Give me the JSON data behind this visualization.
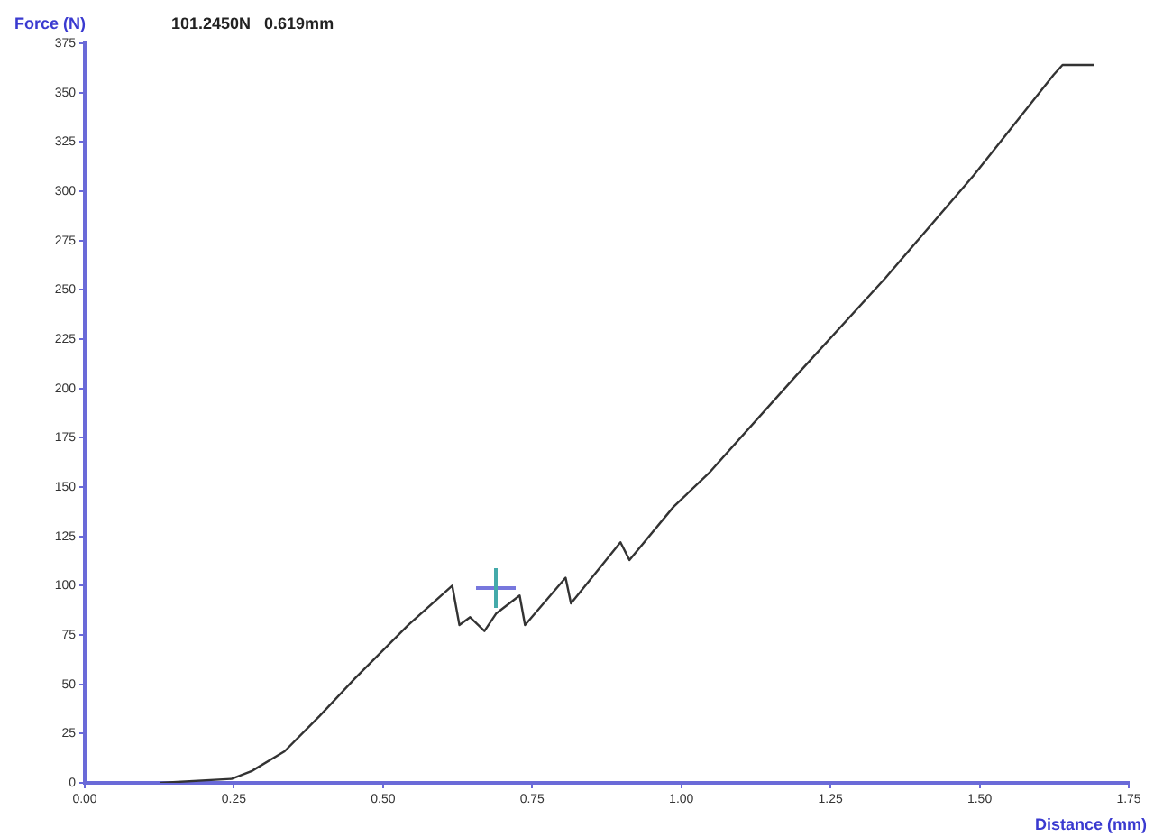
{
  "chart_data": {
    "type": "line",
    "title": "101.2450N   0.619mm",
    "xlabel": "Distance (mm)",
    "ylabel": "Force (N)",
    "x": [
      0.127,
      0.246,
      0.28,
      0.335,
      0.394,
      0.453,
      0.542,
      0.616,
      0.628,
      0.646,
      0.67,
      0.69,
      0.729,
      0.738,
      0.806,
      0.815,
      0.898,
      0.913,
      0.987,
      1.046,
      1.194,
      1.342,
      1.49,
      1.624,
      1.639,
      1.692
    ],
    "series": [
      {
        "color": "#333333",
        "values": [
          0,
          2,
          6,
          16,
          34,
          53,
          80,
          100,
          80,
          84,
          77,
          86,
          95,
          80,
          104,
          91,
          122,
          113,
          140,
          157,
          207,
          256,
          308,
          359,
          364,
          364
        ]
      }
    ],
    "xlim": [
      0,
      1.75
    ],
    "xticks": [
      {
        "value": 0,
        "label": "0.00"
      },
      {
        "value": 0.25,
        "label": "0.25"
      },
      {
        "value": 0.5,
        "label": "0.50"
      },
      {
        "value": 0.75,
        "label": "0.75"
      },
      {
        "value": 1,
        "label": "1.00"
      },
      {
        "value": 1.25,
        "label": "1.25"
      },
      {
        "value": 1.5,
        "label": "1.50"
      },
      {
        "value": 1.75,
        "label": "1.75"
      }
    ],
    "ylim": [
      0,
      375
    ],
    "yticks": [
      0,
      25,
      50,
      75,
      100,
      125,
      150,
      175,
      200,
      225,
      250,
      275,
      300,
      325,
      350,
      375
    ],
    "grid": false,
    "legend": false,
    "marker": "none",
    "line_style": "solid"
  }
}
